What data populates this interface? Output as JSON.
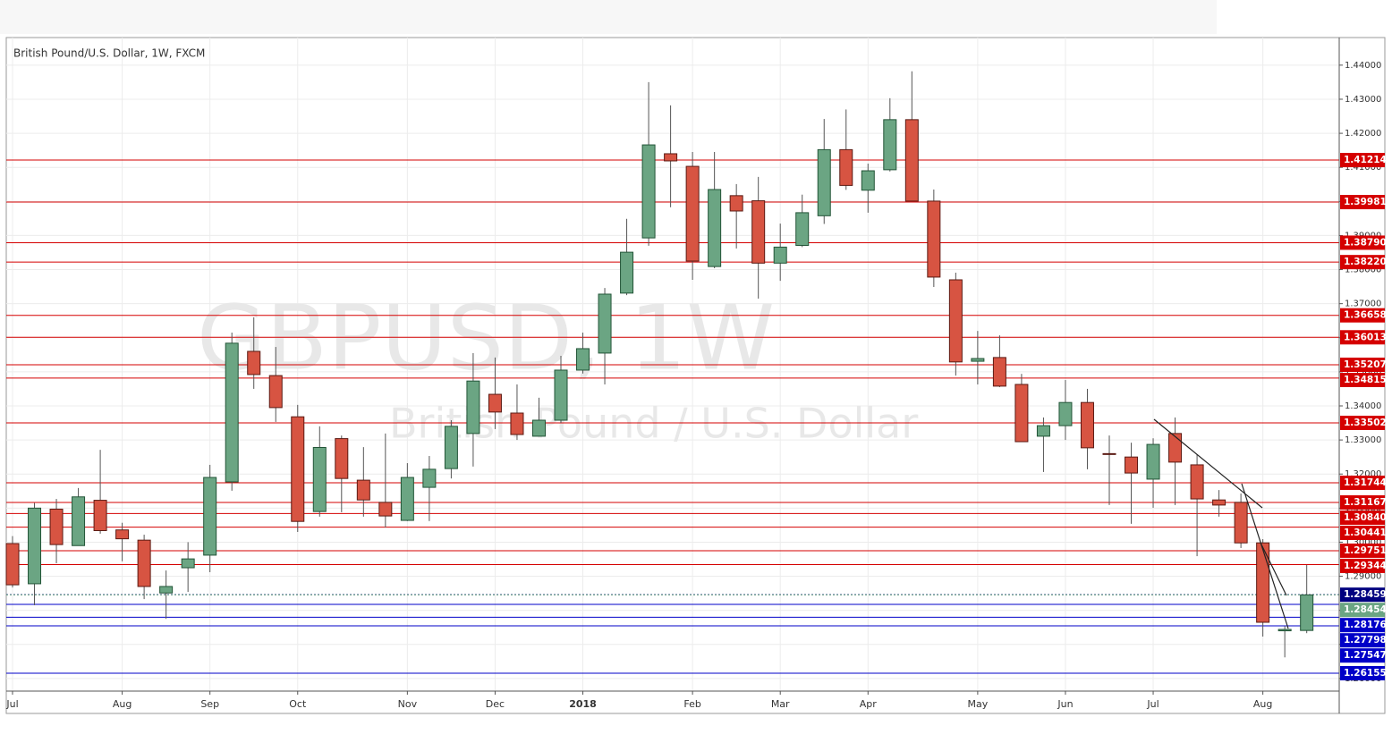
{
  "chart_data": {
    "type": "candlestick",
    "title": "British Pound/U.S. Dollar, 1W, FXCM",
    "watermark": "GBPUSD, 1W",
    "watermark_subtitle": "British Pound / U.S. Dollar",
    "up_color": "#6ba583",
    "down_color": "#d75442",
    "grid": true,
    "categories": [
      "Jul",
      null,
      null,
      null,
      null,
      "Aug",
      null,
      null,
      null,
      "Sep",
      null,
      null,
      null,
      "Oct",
      null,
      null,
      null,
      null,
      "Nov",
      null,
      null,
      null,
      "Dec",
      null,
      null,
      null,
      "2018",
      null,
      null,
      null,
      null,
      "Feb",
      null,
      null,
      null,
      "Mar",
      null,
      null,
      null,
      "Apr",
      null,
      null,
      null,
      null,
      "May",
      null,
      null,
      null,
      "Jun",
      null,
      null,
      null,
      "Jul",
      null,
      null,
      null,
      null,
      "Aug",
      null,
      null
    ],
    "open": [
      1.2996,
      1.2878,
      1.3097,
      1.299,
      1.3123,
      1.3036,
      1.3006,
      1.2851,
      1.2925,
      1.2962,
      1.3177,
      1.356,
      1.3489,
      1.3368,
      1.309,
      1.3304,
      1.3182,
      1.3117,
      1.3064,
      1.3161,
      1.3216,
      1.3319,
      1.3434,
      1.3379,
      1.3311,
      1.3358,
      1.3505,
      1.3555,
      1.3731,
      1.3893,
      1.414,
      1.4103,
      1.3809,
      1.4017,
      1.4002,
      1.3819,
      1.3871,
      1.3958,
      1.4152,
      1.4033,
      1.4093,
      1.424,
      1.4001,
      1.377,
      1.3531,
      1.3542,
      1.3463,
      1.3311,
      1.3342,
      1.341,
      1.326,
      1.325,
      1.3185,
      1.3319,
      1.3227,
      1.3124,
      1.3117,
      1.2998,
      1.274,
      1.2741
    ],
    "high": [
      1.3018,
      1.3115,
      1.3127,
      1.3159,
      1.3271,
      1.3057,
      1.3022,
      1.2917,
      1.3,
      1.3227,
      1.3615,
      1.366,
      1.3573,
      1.3403,
      1.334,
      1.3313,
      1.3279,
      1.3319,
      1.3232,
      1.3253,
      1.3358,
      1.3555,
      1.3542,
      1.3463,
      1.3424,
      1.3547,
      1.3615,
      1.3746,
      1.3949,
      1.435,
      1.4282,
      1.4145,
      1.4145,
      1.4051,
      1.4072,
      1.3935,
      1.402,
      1.4242,
      1.427,
      1.4111,
      1.4303,
      1.4382,
      1.4035,
      1.3791,
      1.362,
      1.3607,
      1.3494,
      1.3366,
      1.3476,
      1.345,
      1.3313,
      1.3292,
      1.3305,
      1.3366,
      1.3258,
      1.3153,
      1.3143,
      1.3009,
      1.2754,
      1.2933
    ],
    "low": [
      1.2867,
      1.2815,
      1.2938,
      1.299,
      1.3025,
      1.2944,
      1.2833,
      1.2775,
      1.2854,
      1.2912,
      1.3151,
      1.345,
      1.3353,
      1.303,
      1.3075,
      1.3088,
      1.3075,
      1.3043,
      1.3062,
      1.3062,
      1.3187,
      1.3222,
      1.3332,
      1.33,
      1.3311,
      1.335,
      1.3495,
      1.3463,
      1.3725,
      1.387,
      1.3983,
      1.377,
      1.3804,
      1.3862,
      1.3715,
      1.3767,
      1.3866,
      1.3934,
      1.4034,
      1.3967,
      1.4088,
      1.4001,
      1.3749,
      1.3489,
      1.3463,
      1.3455,
      1.3295,
      1.3206,
      1.33,
      1.3214,
      1.3109,
      1.3054,
      1.3101,
      1.3109,
      1.2959,
      1.3075,
      1.2983,
      1.2723,
      1.2662,
      1.2733
    ],
    "close": [
      1.2875,
      1.31,
      1.2993,
      1.3133,
      1.3034,
      1.301,
      1.287,
      1.287,
      1.2951,
      1.319,
      1.3584,
      1.3492,
      1.3395,
      1.3061,
      1.3278,
      1.3187,
      1.3124,
      1.3077,
      1.319,
      1.3214,
      1.334,
      1.3473,
      1.3382,
      1.3316,
      1.3358,
      1.3505,
      1.3568,
      1.3728,
      1.3851,
      1.4166,
      1.4119,
      1.3825,
      1.4035,
      1.3972,
      1.3819,
      1.3866,
      1.3967,
      1.4152,
      1.4047,
      1.409,
      1.424,
      1.4001,
      1.3778,
      1.3529,
      1.3539,
      1.3458,
      1.3295,
      1.3342,
      1.341,
      1.3277,
      1.3258,
      1.3203,
      1.3287,
      1.3235,
      1.3127,
      1.3109,
      1.2998,
      1.2765,
      1.2744,
      1.28454
    ],
    "ylim": [
      1.2563,
      1.4481
    ],
    "yticks": [
      {
        "value": 1.26,
        "label": "1.26000"
      },
      {
        "value": 1.27,
        "label": "1.27000"
      },
      {
        "value": 1.28,
        "label": "1.28000"
      },
      {
        "value": 1.29,
        "label": "1.29000"
      },
      {
        "value": 1.3,
        "label": "1.30000"
      },
      {
        "value": 1.31,
        "label": "1.31000"
      },
      {
        "value": 1.32,
        "label": "1.32000"
      },
      {
        "value": 1.33,
        "label": "1.33000"
      },
      {
        "value": 1.34,
        "label": "1.34000"
      },
      {
        "value": 1.35,
        "label": "1.35000"
      },
      {
        "value": 1.36,
        "label": "1.36000"
      },
      {
        "value": 1.37,
        "label": "1.37000"
      },
      {
        "value": 1.38,
        "label": "1.38000"
      },
      {
        "value": 1.39,
        "label": "1.39000"
      },
      {
        "value": 1.4,
        "label": "1.40000"
      },
      {
        "value": 1.41,
        "label": "1.41000"
      },
      {
        "value": 1.42,
        "label": "1.42000"
      },
      {
        "value": 1.43,
        "label": "1.43000"
      },
      {
        "value": 1.44,
        "label": "1.44000"
      }
    ],
    "levels": [
      {
        "value": 1.41214,
        "label": "1.41214",
        "color": "#d50000"
      },
      {
        "value": 1.39981,
        "label": "1.39981",
        "color": "#d50000"
      },
      {
        "value": 1.3879,
        "label": "1.38790",
        "color": "#d50000"
      },
      {
        "value": 1.3822,
        "label": "1.38220",
        "color": "#d50000"
      },
      {
        "value": 1.36658,
        "label": "1.36658",
        "color": "#d50000"
      },
      {
        "value": 1.36013,
        "label": "1.36013",
        "color": "#d50000"
      },
      {
        "value": 1.35207,
        "label": "1.35207",
        "color": "#d50000"
      },
      {
        "value": 1.34815,
        "label": "1.34815",
        "color": "#d50000"
      },
      {
        "value": 1.33502,
        "label": "1.33502",
        "color": "#d50000"
      },
      {
        "value": 1.31744,
        "label": "1.31744",
        "color": "#d50000"
      },
      {
        "value": 1.31167,
        "label": "1.31167",
        "color": "#d50000"
      },
      {
        "value": 1.3084,
        "label": "1.30840",
        "color": "#d50000"
      },
      {
        "value": 1.30441,
        "label": "1.30441",
        "color": "#d50000"
      },
      {
        "value": 1.29751,
        "label": "1.29751",
        "color": "#d50000"
      },
      {
        "value": 1.29344,
        "label": "1.29344",
        "color": "#d50000"
      },
      {
        "value": 1.28459,
        "label": "1.28459",
        "color": "#000080",
        "dotted": true
      },
      {
        "value": 1.28454,
        "label": "1.28454",
        "color": "#6ba583",
        "dotted": true
      },
      {
        "value": 1.28176,
        "label": "1.28176",
        "color": "#0000c8"
      },
      {
        "value": 1.27798,
        "label": "1.27798",
        "color": "#0000c8"
      },
      {
        "value": 1.27547,
        "label": "1.27547",
        "color": "#0000c8"
      },
      {
        "value": 1.26155,
        "label": "1.26155",
        "color": "#0000c8"
      }
    ]
  }
}
